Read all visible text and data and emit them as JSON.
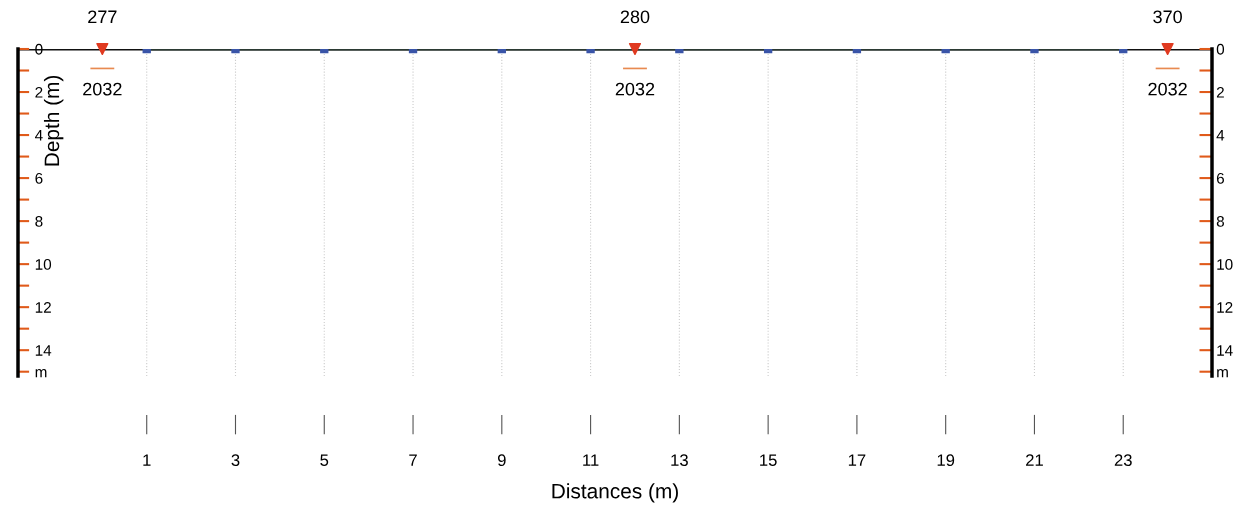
{
  "chart_data": {
    "type": "line",
    "xlabel": "Distances (m)",
    "ylabel": "Depth (m)",
    "x": [
      1,
      3,
      5,
      7,
      9,
      11,
      13,
      15,
      17,
      19,
      21,
      23
    ],
    "series": [
      {
        "color": "#2b3a33",
        "values": [
          0,
          0,
          0,
          0,
          0,
          0,
          0,
          0,
          0,
          0,
          0,
          0
        ]
      },
      {
        "type": "scatter",
        "x": [
          0,
          12,
          24
        ],
        "values": [
          0,
          0,
          0
        ],
        "color": "#e03a20",
        "marker": "triangle"
      }
    ],
    "marker": "square",
    "grid": "x",
    "xlim": [
      -1.9,
      25
    ],
    "xticks": [
      1,
      3,
      5,
      7,
      9,
      11,
      13,
      15,
      17,
      19,
      21,
      23
    ],
    "ylim": [
      15.2,
      0
    ],
    "yticks": [
      0,
      {
        "value": 1,
        "label": null
      },
      2,
      {
        "value": 3,
        "label": null
      },
      4,
      {
        "value": 5,
        "label": null
      },
      6,
      {
        "value": 7,
        "label": null
      },
      8,
      {
        "value": 9,
        "label": null
      },
      10,
      {
        "value": 11,
        "label": null
      },
      12,
      {
        "value": 13,
        "label": null
      },
      14,
      {
        "value": 15,
        "label": "m"
      }
    ],
    "y2lim": [
      15.2,
      0
    ],
    "y2ticks": [
      0,
      {
        "value": 1,
        "label": null
      },
      2,
      {
        "value": 3,
        "label": null
      },
      4,
      {
        "value": 5,
        "label": null
      },
      6,
      {
        "value": 7,
        "label": null
      },
      8,
      {
        "value": 9,
        "label": null
      },
      10,
      {
        "value": 11,
        "label": null
      },
      12,
      {
        "value": 13,
        "label": null
      },
      14,
      {
        "value": 15,
        "label": "m"
      }
    ],
    "annotations": [
      {
        "text": "277",
        "x": 0,
        "y": 0
      },
      {
        "text": "2032",
        "x": 0,
        "y": 0
      },
      {
        "text": "280",
        "x": 12,
        "y": 0
      },
      {
        "text": "2032",
        "x": 12,
        "y": 0
      },
      {
        "text": "370",
        "x": 24,
        "y": 0
      },
      {
        "text": "2032",
        "x": 24,
        "y": 0
      }
    ]
  }
}
